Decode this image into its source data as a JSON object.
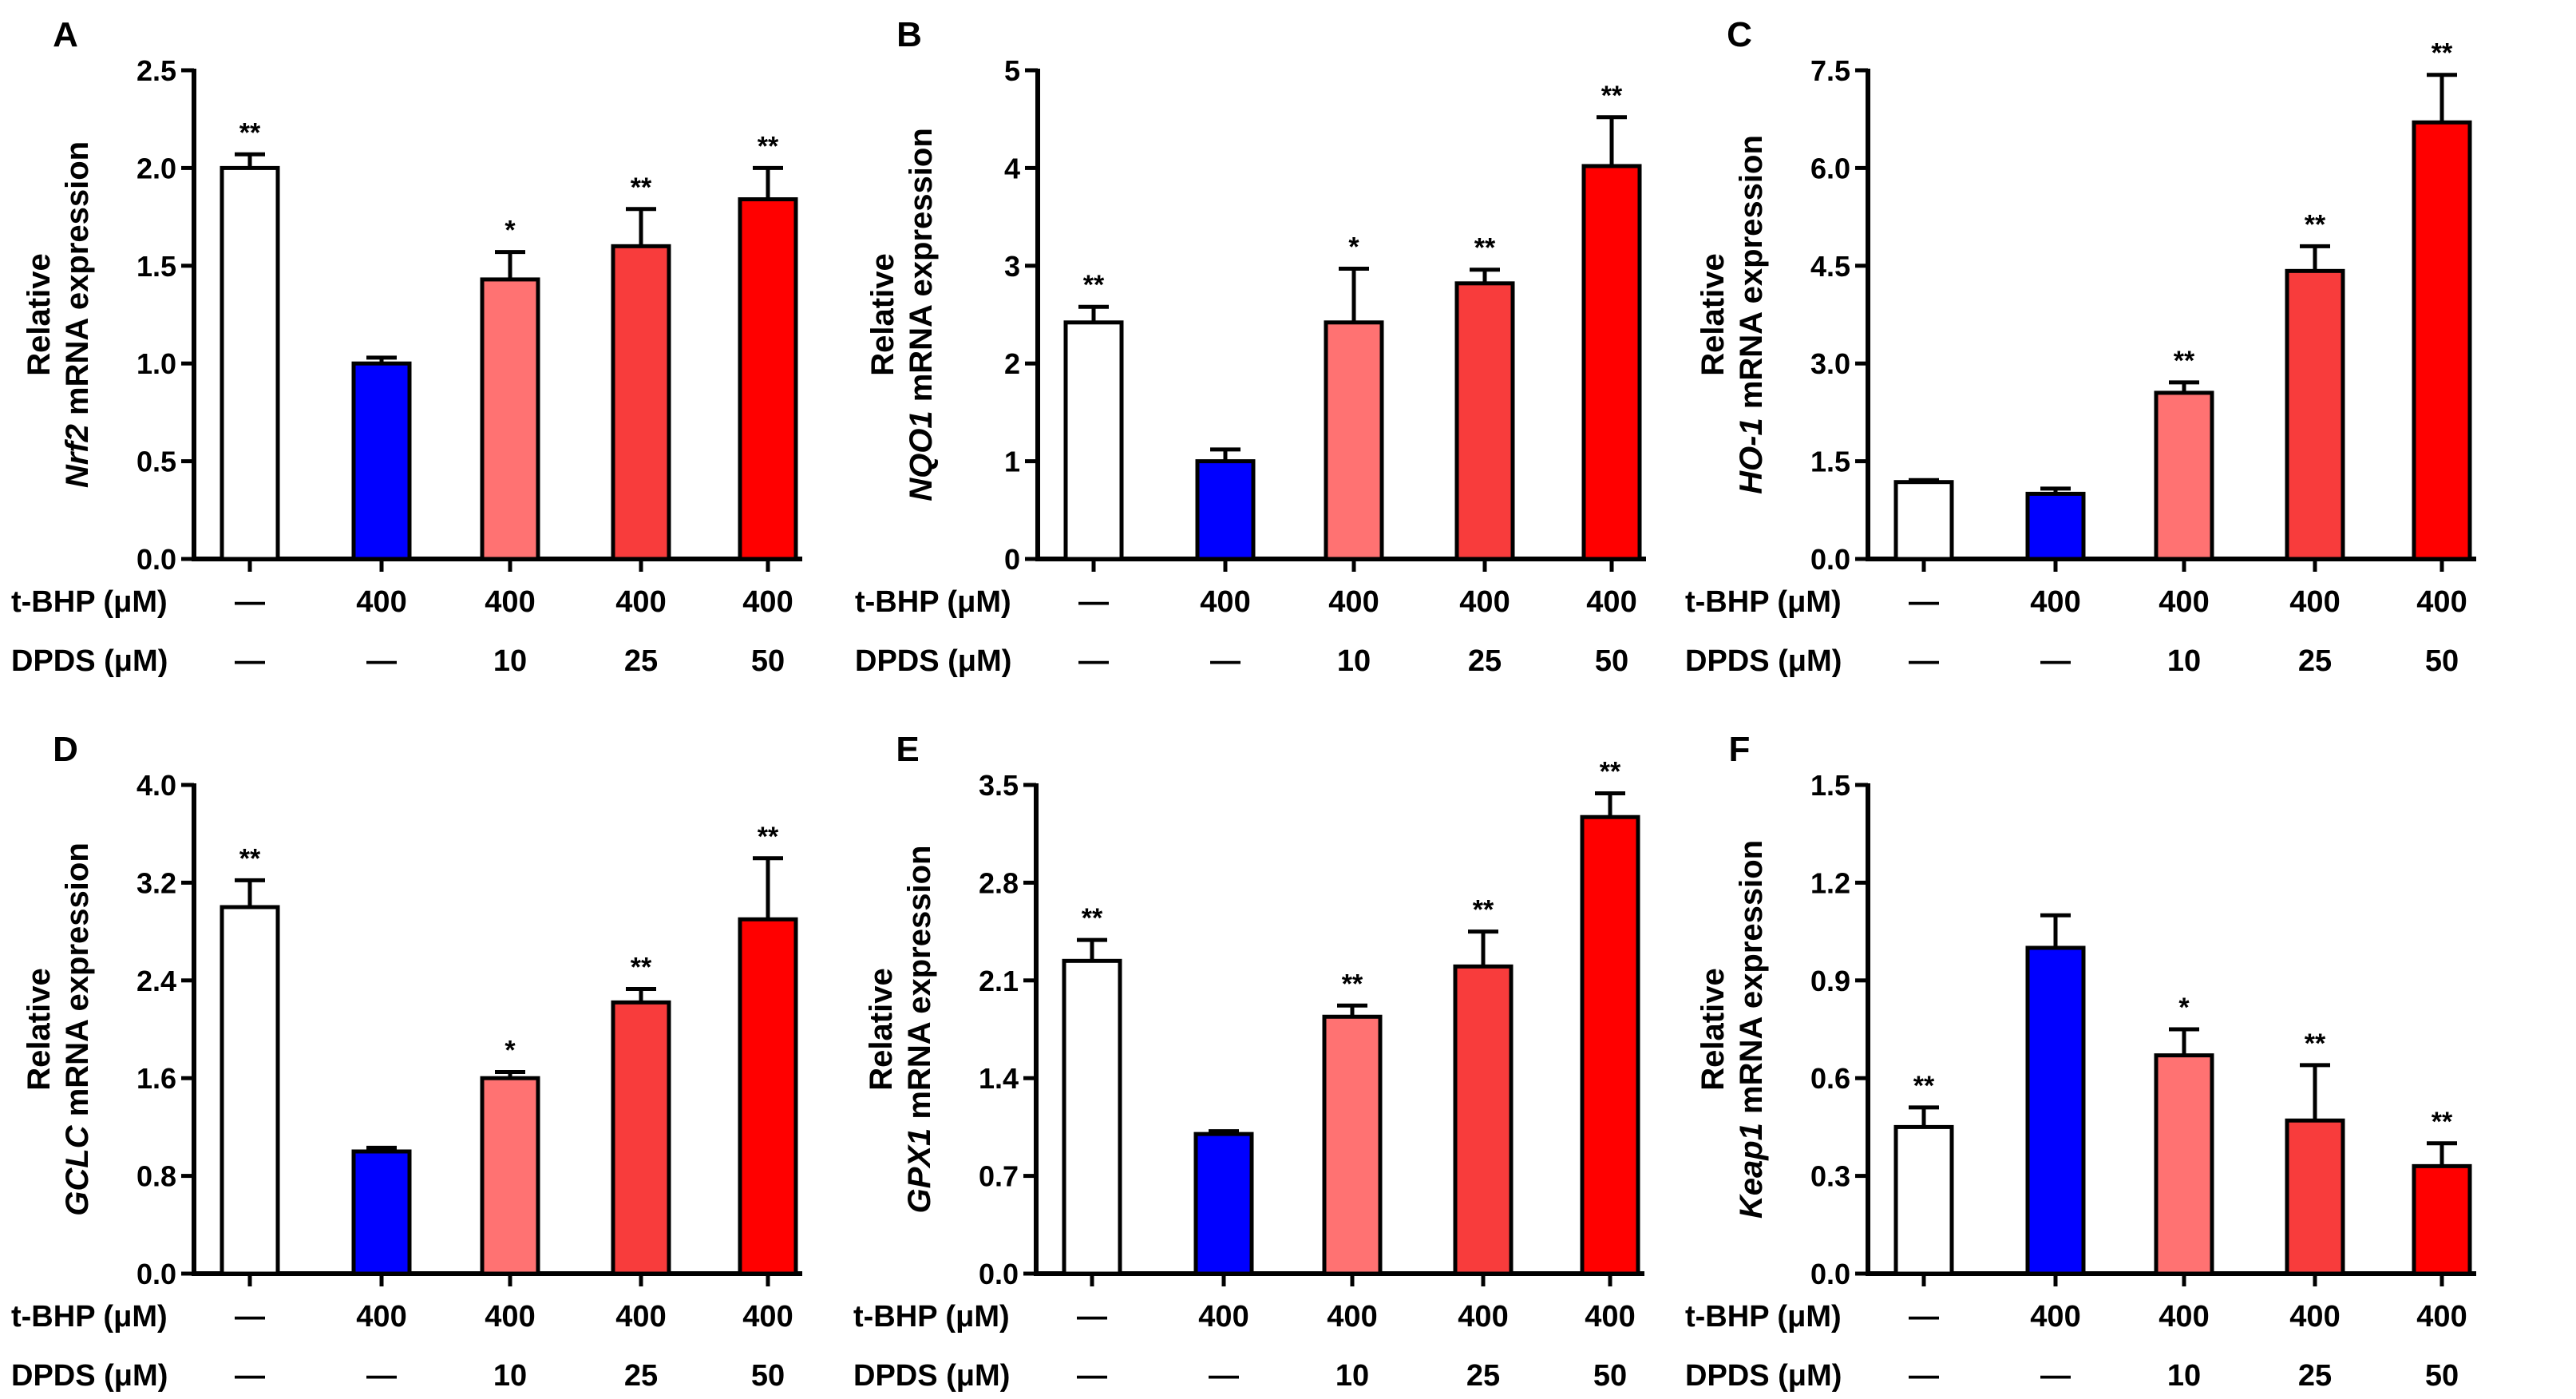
{
  "chart_data": [
    {
      "panel": "A",
      "type": "bar",
      "gene": "Nrf2",
      "ylabel_line1": "Relative",
      "ylabel_suffix": " mRNA expression",
      "ylim": [
        0,
        2.5
      ],
      "yticks": [
        "0.0",
        "0.5",
        "1.0",
        "1.5",
        "2.0",
        "2.5"
      ],
      "values": [
        2.0,
        1.0,
        1.43,
        1.6,
        1.84
      ],
      "errors": [
        0.07,
        0.03,
        0.14,
        0.19,
        0.16
      ],
      "stars": [
        "**",
        "",
        "*",
        "**",
        "**"
      ]
    },
    {
      "panel": "B",
      "type": "bar",
      "gene": "NQO1",
      "ylabel_line1": "Relative",
      "ylabel_suffix": " mRNA expression",
      "ylim": [
        0,
        5
      ],
      "yticks": [
        "0",
        "1",
        "2",
        "3",
        "4",
        "5"
      ],
      "values": [
        2.42,
        1.0,
        2.42,
        2.82,
        4.02
      ],
      "errors": [
        0.16,
        0.12,
        0.55,
        0.14,
        0.5
      ],
      "stars": [
        "**",
        "",
        "*",
        "**",
        "**"
      ]
    },
    {
      "panel": "C",
      "type": "bar",
      "gene": "HO-1",
      "ylabel_line1": "Relative",
      "ylabel_suffix": " mRNA expression",
      "ylim": [
        0,
        7.5
      ],
      "yticks": [
        "0.0",
        "1.5",
        "3.0",
        "4.5",
        "6.0",
        "7.5"
      ],
      "values": [
        1.18,
        1.0,
        2.55,
        4.42,
        6.7
      ],
      "errors": [
        0.03,
        0.08,
        0.16,
        0.38,
        0.73
      ],
      "stars": [
        "",
        "",
        "**",
        "**",
        "**"
      ]
    },
    {
      "panel": "D",
      "type": "bar",
      "gene": "GCLC",
      "ylabel_line1": "Relative",
      "ylabel_suffix": " mRNA expression",
      "ylim": [
        0,
        4.0
      ],
      "yticks": [
        "0.0",
        "0.8",
        "1.6",
        "2.4",
        "3.2",
        "4.0"
      ],
      "values": [
        3.0,
        1.0,
        1.6,
        2.22,
        2.9
      ],
      "errors": [
        0.22,
        0.03,
        0.05,
        0.11,
        0.5
      ],
      "stars": [
        "**",
        "",
        "*",
        "**",
        "**"
      ]
    },
    {
      "panel": "E",
      "type": "bar",
      "gene": "GPX1",
      "ylabel_line1": "Relative",
      "ylabel_suffix": " mRNA expression",
      "ylim": [
        0,
        3.5
      ],
      "yticks": [
        "0.0",
        "0.7",
        "1.4",
        "2.1",
        "2.8",
        "3.5"
      ],
      "values": [
        2.24,
        1.0,
        1.84,
        2.2,
        3.27
      ],
      "errors": [
        0.15,
        0.02,
        0.08,
        0.25,
        0.17
      ],
      "stars": [
        "**",
        "",
        "**",
        "**",
        "**"
      ]
    },
    {
      "panel": "F",
      "type": "bar",
      "gene": "Keap1",
      "ylabel_line1": "Relative",
      "ylabel_suffix": " mRNA expression",
      "ylim": [
        0,
        1.5
      ],
      "yticks": [
        "0.0",
        "0.3",
        "0.6",
        "0.9",
        "1.2",
        "1.5"
      ],
      "values": [
        0.45,
        1.0,
        0.67,
        0.47,
        0.33
      ],
      "errors": [
        0.06,
        0.1,
        0.08,
        0.17,
        0.07
      ],
      "stars": [
        "**",
        "",
        "*",
        "**",
        "**"
      ]
    }
  ],
  "conditions": {
    "tbhp_label": "t-BHP (μM)",
    "dpds_label": "DPDS (μM)",
    "tbhp": [
      "—",
      "400",
      "400",
      "400",
      "400"
    ],
    "dpds": [
      "—",
      "—",
      "10",
      "25",
      "50"
    ]
  },
  "colors": [
    "#ffffff",
    "#0000ff",
    "#ff7272",
    "#f83c3c",
    "#ff0000"
  ]
}
